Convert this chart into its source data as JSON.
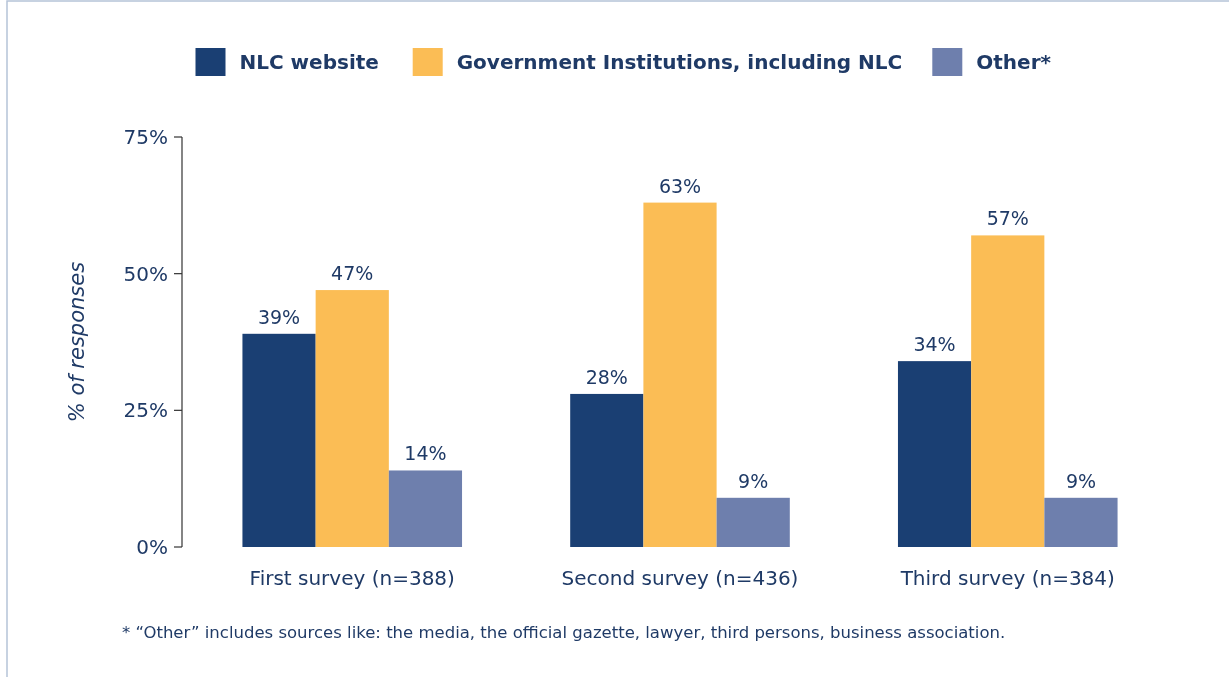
{
  "chart_data": {
    "type": "bar",
    "ylabel": "% of responses",
    "categories": [
      "First survey (n=388)",
      "Second survey (n=436)",
      "Third survey (n=384)"
    ],
    "series": [
      {
        "name": "NLC website",
        "color": "#1a3f73",
        "values": [
          39,
          28,
          34
        ]
      },
      {
        "name": "Government Institutions, including NLC",
        "color": "#fbbd55",
        "values": [
          47,
          63,
          57
        ]
      },
      {
        "name": "Other*",
        "color": "#6e7fad",
        "values": [
          14,
          9,
          9
        ]
      }
    ],
    "ylim": [
      0,
      75
    ],
    "yticks": [
      {
        "value": 0,
        "label": "0%"
      },
      {
        "value": 25,
        "label": "25%"
      },
      {
        "value": 50,
        "label": "50%"
      },
      {
        "value": 75,
        "label": "75%"
      }
    ],
    "value_labels": [
      [
        "39%",
        "28%",
        "34%"
      ],
      [
        "47%",
        "63%",
        "57%"
      ],
      [
        "14%",
        "9%",
        "9%"
      ]
    ],
    "legend": "top",
    "grid": false,
    "annotations": [
      "* “Other” includes sources like: the media, the official gazette, lawyer, third persons, business association."
    ]
  }
}
